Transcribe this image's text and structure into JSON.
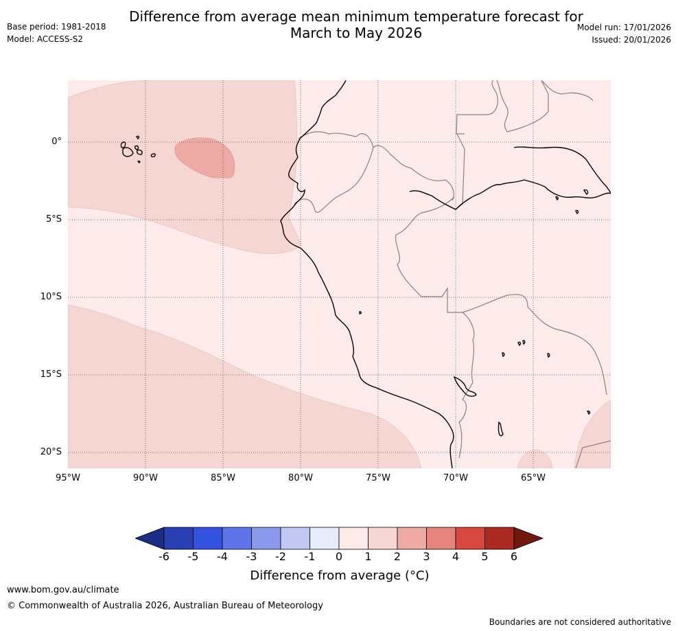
{
  "title": {
    "line1": "Difference from average mean minimum temperature forecast for",
    "line2": "March to May 2026"
  },
  "meta": {
    "base_period": "Base period: 1981-2018",
    "model": "Model: ACCESS-S2",
    "model_run": "Model run: 17/01/2026",
    "issued": "Issued: 20/01/2026"
  },
  "map": {
    "lat_labels": [
      "0°",
      "5°S",
      "10°S",
      "15°S",
      "20°S"
    ],
    "lon_labels": [
      "95°W",
      "90°W",
      "85°W",
      "80°W",
      "75°W",
      "70°W",
      "65°W"
    ],
    "colors": {
      "background_0_1": "#fcebea",
      "band_1_2": "#f6d6d3",
      "band_2_3": "#edaaa5",
      "coast": "#000000",
      "border": "#8a8080"
    }
  },
  "colorbar": {
    "ticks": [
      "-6",
      "-5",
      "-4",
      "-3",
      "-2",
      "-1",
      "0",
      "1",
      "2",
      "3",
      "4",
      "5",
      "6"
    ],
    "colors": [
      "#1c2d86",
      "#2a3fb3",
      "#3352e0",
      "#5f74e8",
      "#8a99ec",
      "#c1c8f3",
      "#e8ebfa",
      "#fcebea",
      "#f6d6d3",
      "#edaaa5",
      "#e5857e",
      "#d9483f",
      "#ab2a22",
      "#70190f"
    ],
    "label": "Difference from average (°C)"
  },
  "footer": {
    "url": "www.bom.gov.au/climate",
    "copyright": "© Commonwealth of Australia 2026, Australian Bureau of Meteorology",
    "disclaimer": "Boundaries are not considered authoritative"
  }
}
